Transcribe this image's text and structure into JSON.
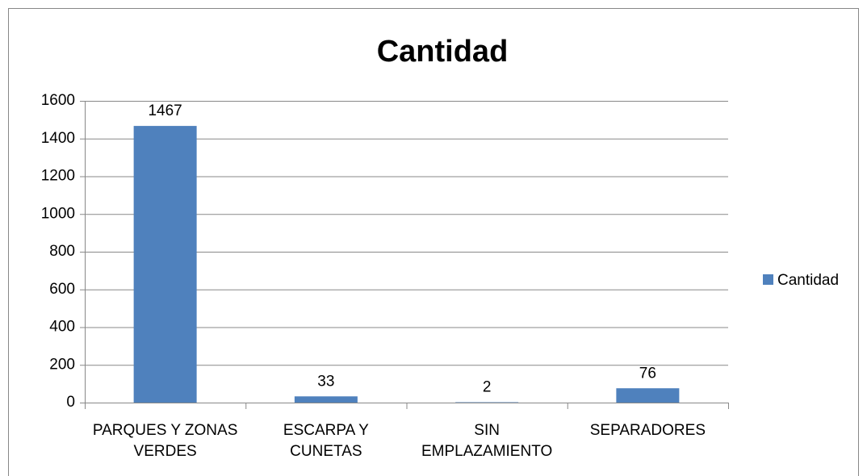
{
  "chart_data": {
    "type": "bar",
    "title": "Cantidad",
    "categories": [
      "PARQUES Y ZONAS VERDES",
      "ESCARPA Y CUNETAS",
      "SIN EMPLAZAMIENTO",
      "SEPARADORES"
    ],
    "series": [
      {
        "name": "Cantidad",
        "color": "#4f81bd",
        "values": [
          1467,
          33,
          2,
          76
        ]
      }
    ],
    "ylim": [
      0,
      1600
    ],
    "yticks": [
      0,
      200,
      400,
      600,
      800,
      1000,
      1200,
      1400,
      1600
    ],
    "grid": true,
    "legend": "right"
  }
}
